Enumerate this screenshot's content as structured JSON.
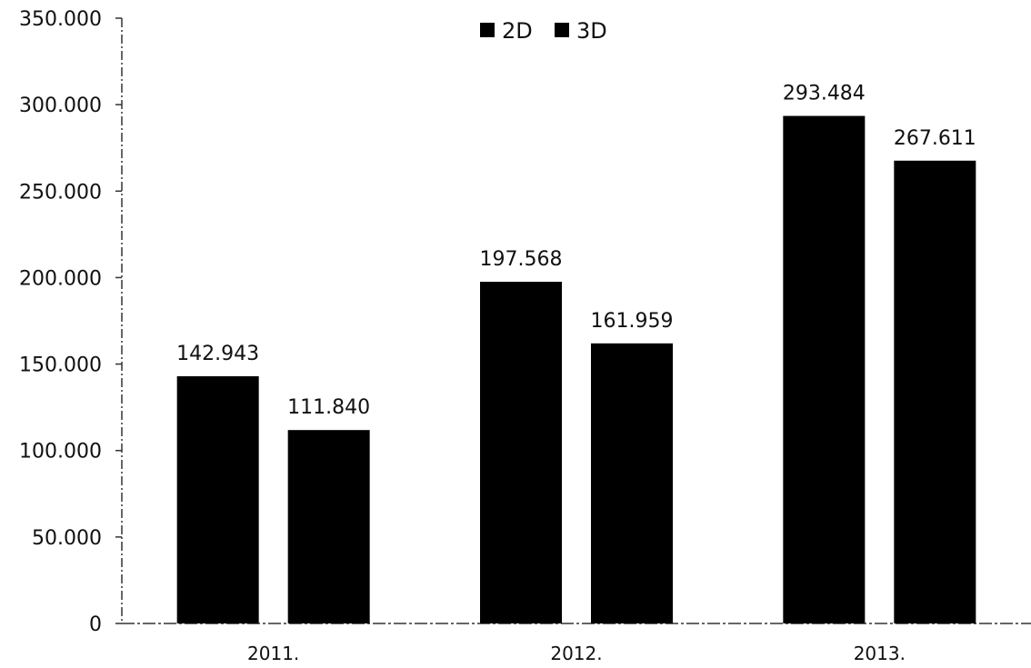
{
  "chart_data": {
    "type": "bar",
    "categories": [
      "2011.",
      "2012.",
      "2013."
    ],
    "series": [
      {
        "name": "2D",
        "values": [
          142943,
          197568,
          293484
        ],
        "labels": [
          "142.943",
          "197.568",
          "293.484"
        ],
        "color": "#000000"
      },
      {
        "name": "3D",
        "values": [
          111840,
          161959,
          267611
        ],
        "labels": [
          "111.840",
          "161.959",
          "267.611"
        ],
        "color": "#000000"
      }
    ],
    "ylim": [
      0,
      350000
    ],
    "yticks": [
      0,
      50000,
      100000,
      150000,
      200000,
      250000,
      300000,
      350000
    ],
    "ytick_labels": [
      "0",
      "50.000",
      "100.000",
      "150.000",
      "200.000",
      "250.000",
      "300.000",
      "350.000"
    ],
    "grid": false,
    "legend": "top-center",
    "title": "",
    "xlabel": "",
    "ylabel": ""
  }
}
